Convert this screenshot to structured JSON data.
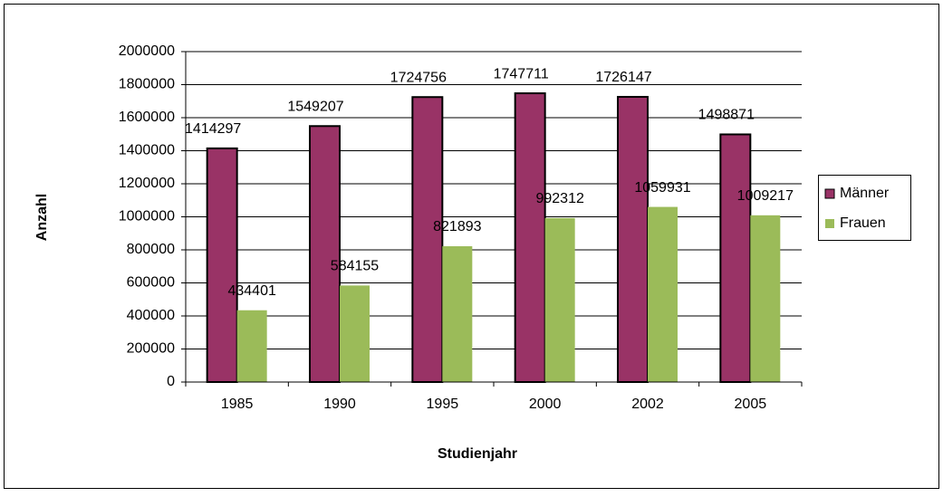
{
  "chart_data": {
    "type": "bar",
    "x_label": "Studienjahr",
    "y_label": "Anzahl",
    "categories": [
      "1985",
      "1990",
      "1995",
      "2000",
      "2002",
      "2005"
    ],
    "series": [
      {
        "name": "Männer",
        "color": "#993366",
        "values": [
          1414297,
          1549207,
          1724756,
          1747711,
          1726147,
          1498871
        ]
      },
      {
        "name": "Frauen",
        "color": "#9bbb59",
        "values": [
          434401,
          584155,
          821893,
          992312,
          1059931,
          1009217
        ]
      }
    ],
    "ylim": [
      0,
      2000000
    ],
    "yticks": [
      0,
      200000,
      400000,
      600000,
      800000,
      1000000,
      1200000,
      1400000,
      1600000,
      1800000,
      2000000
    ],
    "grid": true,
    "legend": "right"
  }
}
